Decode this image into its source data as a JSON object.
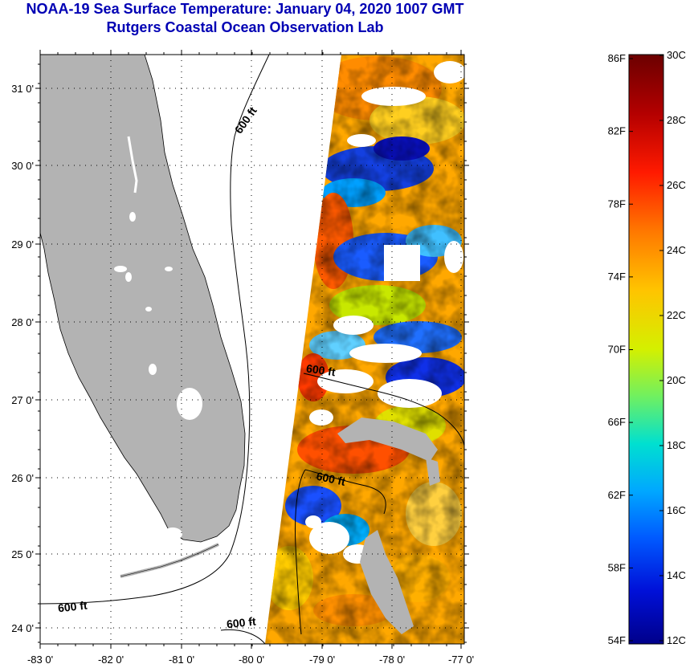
{
  "title": {
    "line1": "NOAA-19 Sea Surface Temperature:  January 04, 2020 1007 GMT",
    "line2": "Rutgers Coastal Ocean Observation Lab"
  },
  "map": {
    "lat_ticks": [
      "31 0'",
      "30 0'",
      "29 0'",
      "28 0'",
      "27 0'",
      "26 0'",
      "25 0'",
      "24 0'"
    ],
    "lon_ticks": [
      "-83 0'",
      "-82 0'",
      "-81 0'",
      "-80 0'",
      "-79 0'",
      "-78 0'",
      "-77 0'"
    ],
    "contour_labels": [
      "600 ft",
      "600 ft",
      "600 ft",
      "600 ft",
      "600 ft"
    ],
    "land_color": "#b3b3b3",
    "cloud_color": "#ffffff"
  },
  "colorbar": {
    "fahrenheit": [
      "86F",
      "82F",
      "78F",
      "74F",
      "70F",
      "66F",
      "62F",
      "58F",
      "54F"
    ],
    "celsius": [
      "30C",
      "28C",
      "26C",
      "24C",
      "22C",
      "20C",
      "18C",
      "16C",
      "14C",
      "12C"
    ]
  }
}
